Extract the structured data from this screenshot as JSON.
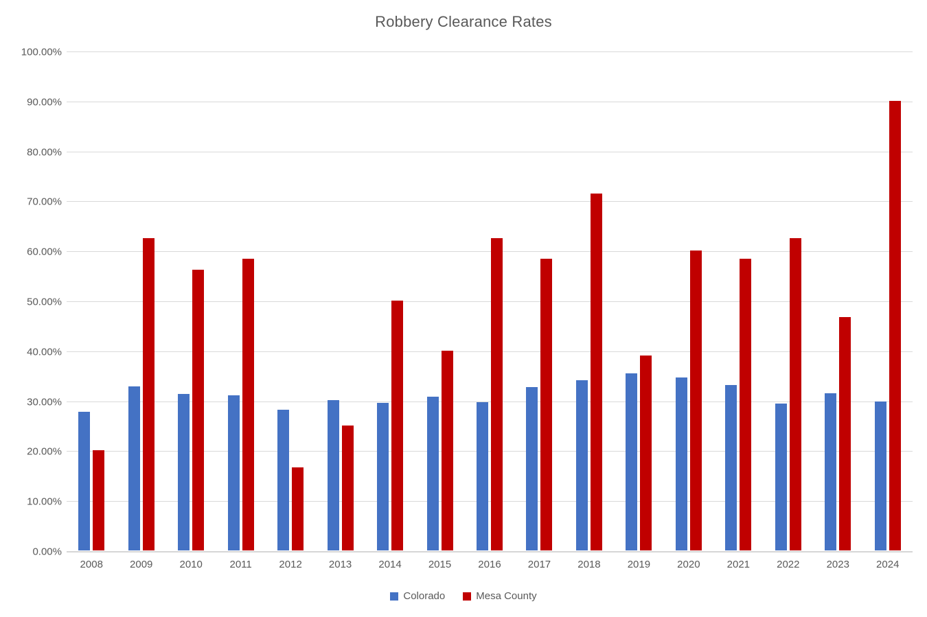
{
  "chart_data": {
    "type": "bar",
    "title": "Robbery Clearance Rates",
    "categories": [
      "2008",
      "2009",
      "2010",
      "2011",
      "2012",
      "2013",
      "2014",
      "2015",
      "2016",
      "2017",
      "2018",
      "2019",
      "2020",
      "2021",
      "2022",
      "2023",
      "2024"
    ],
    "series": [
      {
        "name": "Colorado",
        "color": "#4472C4",
        "values": [
          27.8,
          32.9,
          31.3,
          31.0,
          28.1,
          30.1,
          29.6,
          30.8,
          29.7,
          32.7,
          34.0,
          35.5,
          34.6,
          33.1,
          29.4,
          31.4,
          29.8
        ]
      },
      {
        "name": "Mesa County",
        "color": "#C00000",
        "values": [
          20.0,
          62.5,
          56.25,
          58.33,
          16.67,
          25.0,
          50.0,
          40.0,
          62.5,
          58.33,
          71.43,
          39.0,
          60.0,
          58.33,
          62.5,
          46.67,
          90.0
        ]
      }
    ],
    "xlabel": "",
    "ylabel": "",
    "ylim": [
      0,
      100
    ],
    "ytick_step": 10,
    "ytick_labels": [
      "100.00%",
      "90.00%",
      "80.00%",
      "70.00%",
      "60.00%",
      "50.00%",
      "40.00%",
      "30.00%",
      "20.00%",
      "10.00%",
      "0.00%"
    ],
    "grid": true,
    "gridline_color": "#D9D9D9",
    "legend_position": "bottom",
    "text_color": "#595959",
    "background_color": "#FFFFFF"
  }
}
